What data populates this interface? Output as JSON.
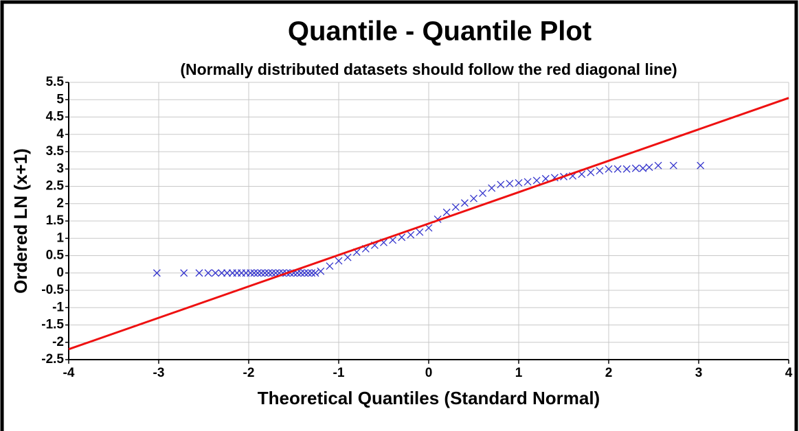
{
  "chart_data": {
    "type": "scatter",
    "title": "Quantile - Quantile Plot",
    "subtitle": "(Normally distributed datasets should follow the red diagonal line)",
    "x_label": "Theoretical Quantiles (Standard Normal)",
    "y_label": "Ordered LN (x+1)",
    "xlim": [
      -4,
      4
    ],
    "ylim": [
      -2.5,
      5.5
    ],
    "xticks": [
      -4,
      -3,
      -2,
      -1,
      0,
      1,
      2,
      3,
      4
    ],
    "yticks": [
      5.5,
      5,
      4.5,
      4,
      3.5,
      3,
      2.5,
      2,
      1.5,
      1,
      0.5,
      0,
      -0.5,
      -1,
      -1.5,
      -2,
      -2.5
    ],
    "grid": true,
    "series": [
      {
        "color": "#3333cc",
        "marker": "x",
        "x": [
          -3.02,
          -2.72,
          -2.55,
          -2.45,
          -2.37,
          -2.3,
          -2.24,
          -2.18,
          -2.13,
          -2.08,
          -2.03,
          -1.98,
          -1.94,
          -1.9,
          -1.86,
          -1.82,
          -1.78,
          -1.74,
          -1.7,
          -1.66,
          -1.62,
          -1.58,
          -1.54,
          -1.5,
          -1.46,
          -1.42,
          -1.38,
          -1.34,
          -1.3,
          -1.26,
          -1.2,
          -1.1,
          -1.0,
          -0.9,
          -0.8,
          -0.7,
          -0.6,
          -0.5,
          -0.4,
          -0.3,
          -0.2,
          -0.1,
          0.0,
          0.1,
          0.2,
          0.3,
          0.4,
          0.5,
          0.6,
          0.7,
          0.8,
          0.9,
          1.0,
          1.1,
          1.2,
          1.3,
          1.4,
          1.5,
          1.6,
          1.7,
          1.8,
          1.9,
          2.0,
          2.1,
          2.2,
          2.3,
          2.38,
          2.45,
          2.55,
          2.72,
          3.02
        ],
        "values": [
          0,
          0,
          0,
          0,
          0,
          0,
          0,
          0,
          0,
          0,
          0,
          0,
          0,
          0,
          0,
          0,
          0,
          0,
          0,
          0,
          0,
          0,
          0,
          0,
          0,
          0,
          0,
          0,
          0,
          0,
          0.05,
          0.2,
          0.35,
          0.45,
          0.6,
          0.7,
          0.8,
          0.88,
          0.95,
          1.03,
          1.1,
          1.18,
          1.3,
          1.55,
          1.75,
          1.9,
          2.02,
          2.15,
          2.3,
          2.45,
          2.55,
          2.58,
          2.6,
          2.63,
          2.67,
          2.72,
          2.75,
          2.78,
          2.8,
          2.85,
          2.9,
          2.95,
          3.0,
          3.0,
          3.0,
          3.02,
          3.02,
          3.05,
          3.1,
          3.1,
          3.1
        ]
      },
      {
        "color": "#ee1111",
        "marker": "line",
        "x": [
          -4,
          4
        ],
        "values": [
          -2.2,
          5.05
        ]
      }
    ]
  }
}
